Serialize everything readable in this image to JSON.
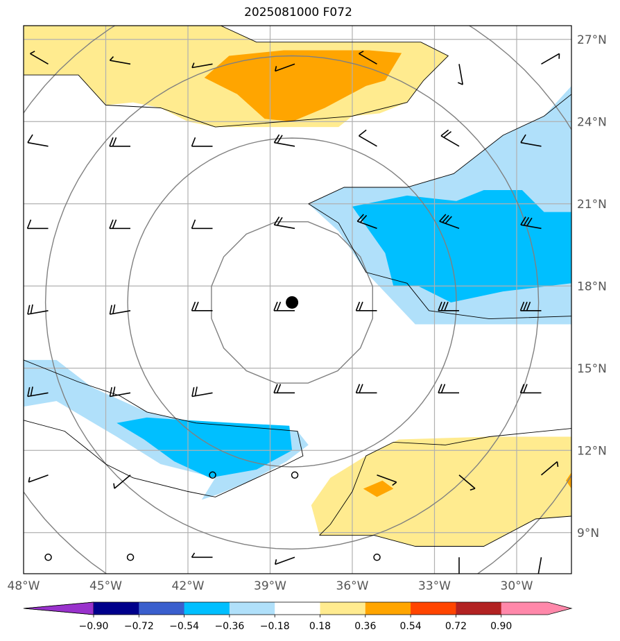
{
  "title": "2025081000 F072",
  "map": {
    "lon_range": [
      -48,
      -28
    ],
    "lat_range": [
      7.5,
      27.5
    ],
    "lon_ticks": [
      {
        "value": -48,
        "label": "48°W"
      },
      {
        "value": -45,
        "label": "45°W"
      },
      {
        "value": -42,
        "label": "42°W"
      },
      {
        "value": -39,
        "label": "39°W"
      },
      {
        "value": -36,
        "label": "36°W"
      },
      {
        "value": -33,
        "label": "33°W"
      },
      {
        "value": -30,
        "label": "30°W"
      }
    ],
    "lat_ticks": [
      {
        "value": 27,
        "label": "27°N"
      },
      {
        "value": 24,
        "label": "24°N"
      },
      {
        "value": 21,
        "label": "21°N"
      },
      {
        "value": 18,
        "label": "18°N"
      },
      {
        "value": 15,
        "label": "15°N"
      },
      {
        "value": 12,
        "label": "12°N"
      },
      {
        "value": 9,
        "label": "9°N"
      }
    ],
    "gridlines": true,
    "storm_center": {
      "lon": -38.2,
      "lat": 17.4
    },
    "range_rings_deg": [
      3,
      6,
      9,
      12
    ],
    "colors": {
      "light_blue": "#b0e0fa",
      "blue": "#00bfff",
      "yellow": "#ffeb8f",
      "orange": "#ffa500",
      "grid": "#b0b0b0",
      "ring": "#808080"
    },
    "shaded_regions": [
      {
        "level": "light_blue",
        "points": [
          [
            -37.6,
            21
          ],
          [
            -36.3,
            21.6
          ],
          [
            -34,
            21.6
          ],
          [
            -32.3,
            22.1
          ],
          [
            -30.5,
            23.5
          ],
          [
            -29,
            24.2
          ],
          [
            -28,
            25.3
          ],
          [
            -28,
            16.6
          ],
          [
            -31,
            16.6
          ],
          [
            -33.7,
            16.6
          ],
          [
            -35.5,
            18.5
          ],
          [
            -36.5,
            20
          ]
        ]
      },
      {
        "level": "blue",
        "points": [
          [
            -36,
            20.9
          ],
          [
            -34,
            21.3
          ],
          [
            -32.2,
            21.1
          ],
          [
            -31.2,
            21.5
          ],
          [
            -29.8,
            21.5
          ],
          [
            -29,
            20.7
          ],
          [
            -28,
            20.7
          ],
          [
            -28,
            18.1
          ],
          [
            -30.5,
            17.8
          ],
          [
            -32.4,
            17.4
          ],
          [
            -33.6,
            18
          ],
          [
            -34.5,
            18
          ],
          [
            -34.8,
            19.2
          ]
        ]
      },
      {
        "level": "yellow",
        "points": [
          [
            -48,
            27.5
          ],
          [
            -42.5,
            27.5
          ],
          [
            -40.8,
            27.5
          ],
          [
            -39.5,
            26.9
          ],
          [
            -36.5,
            26.9
          ],
          [
            -33.5,
            26.9
          ],
          [
            -32.5,
            26.4
          ],
          [
            -33.4,
            25.5
          ],
          [
            -34,
            24.7
          ],
          [
            -35,
            24.3
          ],
          [
            -36,
            24.2
          ],
          [
            -36.5,
            23.8
          ],
          [
            -37.5,
            23.8
          ],
          [
            -39.5,
            23.8
          ],
          [
            -41,
            23.8
          ],
          [
            -42,
            24
          ],
          [
            -43,
            24.5
          ],
          [
            -44,
            24.7
          ],
          [
            -45,
            24.6
          ],
          [
            -46,
            25.7
          ],
          [
            -47.2,
            25.7
          ],
          [
            -48,
            25.7
          ]
        ]
      },
      {
        "level": "orange",
        "points": [
          [
            -40.5,
            26.4
          ],
          [
            -38.5,
            26.6
          ],
          [
            -35.4,
            26.6
          ],
          [
            -34.2,
            26.5
          ],
          [
            -34.8,
            25.5
          ],
          [
            -35.5,
            25.3
          ],
          [
            -37,
            24.5
          ],
          [
            -38.2,
            24
          ],
          [
            -39.2,
            24.1
          ],
          [
            -40.2,
            25
          ],
          [
            -41.4,
            25.6
          ]
        ]
      },
      {
        "level": "light_blue",
        "points": [
          [
            -48,
            15.3
          ],
          [
            -46.8,
            15.3
          ],
          [
            -45.5,
            14.3
          ],
          [
            -43.5,
            13.4
          ],
          [
            -41.7,
            13
          ],
          [
            -39.2,
            12.8
          ],
          [
            -38,
            12.7
          ],
          [
            -37.6,
            12.2
          ],
          [
            -38.4,
            11.6
          ],
          [
            -39.7,
            10.9
          ],
          [
            -40.9,
            10.4
          ],
          [
            -41.5,
            10.2
          ],
          [
            -41,
            11
          ],
          [
            -43,
            11.5
          ],
          [
            -44.6,
            12.5
          ],
          [
            -46.8,
            13.8
          ],
          [
            -48,
            13.6
          ]
        ]
      },
      {
        "level": "blue",
        "points": [
          [
            -44.6,
            13
          ],
          [
            -43.5,
            13.2
          ],
          [
            -42,
            13.1
          ],
          [
            -40.3,
            13
          ],
          [
            -38.3,
            12.9
          ],
          [
            -38.2,
            12
          ],
          [
            -39.5,
            11.3
          ],
          [
            -41.2,
            11
          ],
          [
            -42.5,
            11.6
          ],
          [
            -43.6,
            12.4
          ]
        ]
      },
      {
        "level": "yellow",
        "points": [
          [
            -37.2,
            8.9
          ],
          [
            -35.2,
            8.9
          ],
          [
            -33.7,
            8.5
          ],
          [
            -31.2,
            8.5
          ],
          [
            -29.3,
            9.5
          ],
          [
            -28,
            9.6
          ],
          [
            -28,
            12.5
          ],
          [
            -31,
            12.5
          ],
          [
            -34.3,
            12.4
          ],
          [
            -35.5,
            11.8
          ],
          [
            -36.8,
            11
          ],
          [
            -37.5,
            10
          ]
        ]
      },
      {
        "level": "orange",
        "points": [
          [
            -35.6,
            10.6
          ],
          [
            -34.9,
            10.9
          ],
          [
            -34.5,
            10.6
          ],
          [
            -35.1,
            10.3
          ]
        ]
      },
      {
        "level": "orange",
        "points": [
          [
            -28,
            11.2
          ],
          [
            -28.2,
            10.9
          ],
          [
            -28,
            10.6
          ]
        ]
      }
    ],
    "coastlines": [
      [
        [
          -48,
          27.5
        ],
        [
          -40.8,
          27.5
        ],
        [
          -39.5,
          26.9
        ],
        [
          -33.5,
          26.9
        ],
        [
          -32.5,
          26.4
        ],
        [
          -33.4,
          25.5
        ],
        [
          -34,
          24.7
        ],
        [
          -36,
          24.2
        ],
        [
          -41,
          23.8
        ],
        [
          -43,
          24.5
        ],
        [
          -45,
          24.6
        ],
        [
          -46,
          25.7
        ],
        [
          -48,
          25.7
        ]
      ],
      [
        [
          -37.6,
          21
        ],
        [
          -36.3,
          21.6
        ],
        [
          -34,
          21.6
        ],
        [
          -32.3,
          22.1
        ],
        [
          -30.5,
          23.5
        ],
        [
          -29,
          24.2
        ],
        [
          -28,
          25
        ]
      ],
      [
        [
          -37.6,
          21
        ],
        [
          -36.5,
          20.3
        ],
        [
          -35.5,
          18.5
        ],
        [
          -34,
          18.1
        ],
        [
          -33.2,
          17.1
        ],
        [
          -31,
          16.8
        ],
        [
          -28,
          16.9
        ]
      ],
      [
        [
          -48,
          15.3
        ],
        [
          -46,
          14.5
        ],
        [
          -44.5,
          14
        ],
        [
          -43.5,
          13.4
        ],
        [
          -41.7,
          13
        ],
        [
          -39.2,
          12.8
        ],
        [
          -38,
          12.7
        ],
        [
          -37.8,
          11.8
        ],
        [
          -38.4,
          11.5
        ],
        [
          -39.7,
          10.9
        ],
        [
          -41,
          10.3
        ],
        [
          -42,
          10.5
        ],
        [
          -44,
          11
        ],
        [
          -45,
          11.5
        ],
        [
          -46.5,
          12.7
        ],
        [
          -48,
          13.1
        ]
      ],
      [
        [
          -37.2,
          8.9
        ],
        [
          -35.2,
          8.9
        ],
        [
          -33.7,
          8.5
        ],
        [
          -31.2,
          8.5
        ],
        [
          -29.3,
          9.5
        ],
        [
          -28,
          9.6
        ]
      ],
      [
        [
          -37.2,
          8.9
        ],
        [
          -36.8,
          9.3
        ],
        [
          -36,
          10.5
        ],
        [
          -35.5,
          11.8
        ],
        [
          -34.5,
          12.3
        ],
        [
          -32.6,
          12.2
        ],
        [
          -31,
          12.5
        ],
        [
          -28,
          12.8
        ]
      ]
    ],
    "wind_barbs": [
      {
        "lon": -47.1,
        "lat": 26.1,
        "dir": 300,
        "flags": [
          0.5
        ]
      },
      {
        "lon": -44.1,
        "lat": 26.1,
        "dir": 280,
        "flags": [
          0.5
        ]
      },
      {
        "lon": -41.1,
        "lat": 26.1,
        "dir": 260,
        "flags": [
          0.5
        ]
      },
      {
        "lon": -38.1,
        "lat": 26.1,
        "dir": 250,
        "flags": [
          0.5
        ]
      },
      {
        "lon": -35.1,
        "lat": 26.1,
        "dir": 300,
        "flags": [
          0.5
        ]
      },
      {
        "lon": -32.1,
        "lat": 26.1,
        "dir": 170,
        "flags": [
          0.5
        ]
      },
      {
        "lon": -29.1,
        "lat": 26.1,
        "dir": 60,
        "flags": [
          0.5
        ]
      },
      {
        "lon": -47.1,
        "lat": 23.1,
        "dir": 280,
        "flags": [
          1
        ]
      },
      {
        "lon": -44.1,
        "lat": 23.1,
        "dir": 270,
        "flags": [
          1,
          1
        ]
      },
      {
        "lon": -41.1,
        "lat": 23.1,
        "dir": 270,
        "flags": [
          1
        ]
      },
      {
        "lon": -38.1,
        "lat": 23.1,
        "dir": 280,
        "flags": [
          1,
          1
        ]
      },
      {
        "lon": -35.1,
        "lat": 23.1,
        "dir": 300,
        "flags": [
          1
        ]
      },
      {
        "lon": -32.1,
        "lat": 23.1,
        "dir": 300,
        "flags": [
          1,
          1
        ]
      },
      {
        "lon": -29.1,
        "lat": 23.1,
        "dir": 280,
        "flags": [
          1
        ]
      },
      {
        "lon": -47.1,
        "lat": 20.1,
        "dir": 270,
        "flags": [
          1
        ]
      },
      {
        "lon": -44.1,
        "lat": 20.1,
        "dir": 270,
        "flags": [
          1,
          1
        ]
      },
      {
        "lon": -41.1,
        "lat": 20.1,
        "dir": 270,
        "flags": [
          1
        ]
      },
      {
        "lon": -38.1,
        "lat": 20.1,
        "dir": 280,
        "flags": [
          1,
          1
        ]
      },
      {
        "lon": -35.1,
        "lat": 20.1,
        "dir": 290,
        "flags": [
          1,
          1
        ]
      },
      {
        "lon": -32.1,
        "lat": 20.1,
        "dir": 290,
        "flags": [
          1,
          1,
          1
        ]
      },
      {
        "lon": -29.1,
        "lat": 20.1,
        "dir": 280,
        "flags": [
          1,
          1,
          1
        ]
      },
      {
        "lon": -47.1,
        "lat": 17.1,
        "dir": 260,
        "flags": [
          1,
          1
        ]
      },
      {
        "lon": -44.1,
        "lat": 17.1,
        "dir": 260,
        "flags": [
          1,
          1
        ]
      },
      {
        "lon": -41.1,
        "lat": 17.1,
        "dir": 270,
        "flags": [
          1,
          1
        ]
      },
      {
        "lon": -38.1,
        "lat": 17.1,
        "dir": 270,
        "flags": [
          1,
          1
        ]
      },
      {
        "lon": -35.1,
        "lat": 17.1,
        "dir": 270,
        "flags": [
          1,
          1
        ]
      },
      {
        "lon": -32.1,
        "lat": 17.1,
        "dir": 270,
        "flags": [
          1,
          1,
          1
        ]
      },
      {
        "lon": -29.1,
        "lat": 17.1,
        "dir": 270,
        "flags": [
          1,
          1,
          1
        ]
      },
      {
        "lon": -47.1,
        "lat": 14.1,
        "dir": 260,
        "flags": [
          1,
          1
        ]
      },
      {
        "lon": -44.1,
        "lat": 14.1,
        "dir": 260,
        "flags": [
          1,
          1
        ]
      },
      {
        "lon": -41.1,
        "lat": 14.1,
        "dir": 260,
        "flags": [
          1,
          1
        ]
      },
      {
        "lon": -38.1,
        "lat": 14.1,
        "dir": 270,
        "flags": [
          1,
          1
        ]
      },
      {
        "lon": -35.1,
        "lat": 14.1,
        "dir": 270,
        "flags": [
          1,
          1
        ]
      },
      {
        "lon": -32.1,
        "lat": 14.1,
        "dir": 270,
        "flags": [
          1,
          1
        ]
      },
      {
        "lon": -29.1,
        "lat": 14.1,
        "dir": 270,
        "flags": [
          1,
          1
        ]
      },
      {
        "lon": -47.1,
        "lat": 11.1,
        "dir": 250,
        "flags": [
          0.5
        ]
      },
      {
        "lon": -44.1,
        "lat": 11.1,
        "dir": 230,
        "flags": [
          0.5
        ]
      },
      {
        "lon": -41.1,
        "lat": 11.1,
        "calm": true
      },
      {
        "lon": -38.1,
        "lat": 11.1,
        "calm": true
      },
      {
        "lon": -35.1,
        "lat": 11.1,
        "dir": 110,
        "flags": [
          0.5
        ]
      },
      {
        "lon": -32.1,
        "lat": 11.1,
        "dir": 130,
        "flags": [
          0.5
        ]
      },
      {
        "lon": -29.1,
        "lat": 11.1,
        "dir": 50,
        "flags": [
          0.5
        ]
      },
      {
        "lon": -47.1,
        "lat": 8.1,
        "calm": true
      },
      {
        "lon": -44.1,
        "lat": 8.1,
        "calm": true
      },
      {
        "lon": -41.1,
        "lat": 8.1,
        "dir": 270,
        "flags": [
          0.5
        ]
      },
      {
        "lon": -38.1,
        "lat": 8.1,
        "dir": 250,
        "flags": [
          0.5
        ]
      },
      {
        "lon": -35.1,
        "lat": 8.1,
        "calm": true
      },
      {
        "lon": -32.1,
        "lat": 8.1,
        "dir": 180,
        "flags": [
          0.5
        ]
      },
      {
        "lon": -29.1,
        "lat": 8.1,
        "dir": 190,
        "flags": [
          0.5
        ]
      }
    ]
  },
  "colorbar": {
    "colors": [
      "#9932cc",
      "#00008b",
      "#3a5fcd",
      "#00bfff",
      "#b0e0fa",
      "#ffffff",
      "#ffeb8f",
      "#ffa500",
      "#ff4500",
      "#b22222",
      "#ff88aa"
    ],
    "ticks": [
      "−0.90",
      "−0.72",
      "−0.54",
      "−0.36",
      "−0.18",
      "0.18",
      "0.36",
      "0.54",
      "0.72",
      "0.90"
    ]
  }
}
